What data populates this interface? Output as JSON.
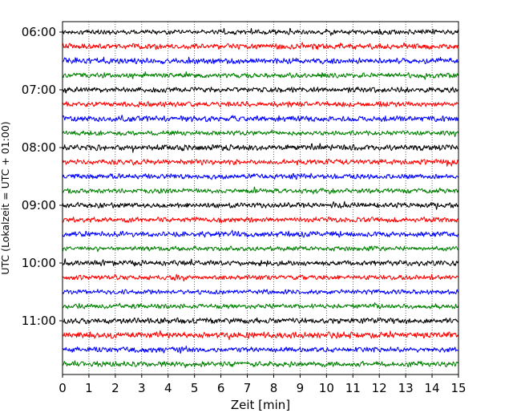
{
  "chart_data": {
    "type": "line",
    "title": "",
    "xlabel": "Zeit  [min]",
    "ylabel": "UTC (Lokalzeit = UTC + 01:00)",
    "xlim": [
      0,
      15
    ],
    "x_ticks": [
      "0",
      "1",
      "2",
      "3",
      "4",
      "5",
      "6",
      "7",
      "8",
      "9",
      "10",
      "11",
      "12",
      "13",
      "14",
      "15"
    ],
    "y_tick_labels": [
      "06:00",
      "07:00",
      "08:00",
      "09:00",
      "10:00",
      "11:00"
    ],
    "grid": "vertical dotted",
    "legend": "none",
    "rows_per_hour": 4,
    "trace_minutes": 15,
    "start_time": "06:00",
    "end_time": "12:00",
    "color_cycle": [
      "#000000",
      "#ff0000",
      "#0000ff",
      "#008000"
    ],
    "series": [
      {
        "start": "06:00",
        "color": "#000000",
        "amplitude": 0.18
      },
      {
        "start": "06:15",
        "color": "#ff0000",
        "amplitude": 0.22
      },
      {
        "start": "06:30",
        "color": "#0000ff",
        "amplitude": 0.22
      },
      {
        "start": "06:45",
        "color": "#008000",
        "amplitude": 0.2
      },
      {
        "start": "07:00",
        "color": "#000000",
        "amplitude": 0.2
      },
      {
        "start": "07:15",
        "color": "#ff0000",
        "amplitude": 0.2
      },
      {
        "start": "07:30",
        "color": "#0000ff",
        "amplitude": 0.22
      },
      {
        "start": "07:45",
        "color": "#008000",
        "amplitude": 0.18
      },
      {
        "start": "08:00",
        "color": "#000000",
        "amplitude": 0.22
      },
      {
        "start": "08:15",
        "color": "#ff0000",
        "amplitude": 0.2
      },
      {
        "start": "08:30",
        "color": "#0000ff",
        "amplitude": 0.2
      },
      {
        "start": "08:45",
        "color": "#008000",
        "amplitude": 0.18
      },
      {
        "start": "09:00",
        "color": "#000000",
        "amplitude": 0.2
      },
      {
        "start": "09:15",
        "color": "#ff0000",
        "amplitude": 0.2
      },
      {
        "start": "09:30",
        "color": "#0000ff",
        "amplitude": 0.22
      },
      {
        "start": "09:45",
        "color": "#008000",
        "amplitude": 0.18
      },
      {
        "start": "10:00",
        "color": "#000000",
        "amplitude": 0.2
      },
      {
        "start": "10:15",
        "color": "#ff0000",
        "amplitude": 0.18
      },
      {
        "start": "10:30",
        "color": "#0000ff",
        "amplitude": 0.18
      },
      {
        "start": "10:45",
        "color": "#008000",
        "amplitude": 0.18
      },
      {
        "start": "11:00",
        "color": "#000000",
        "amplitude": 0.22
      },
      {
        "start": "11:15",
        "color": "#ff0000",
        "amplitude": 0.24
      },
      {
        "start": "11:30",
        "color": "#0000ff",
        "amplitude": 0.2
      },
      {
        "start": "11:45",
        "color": "#008000",
        "amplitude": 0.2
      }
    ]
  }
}
